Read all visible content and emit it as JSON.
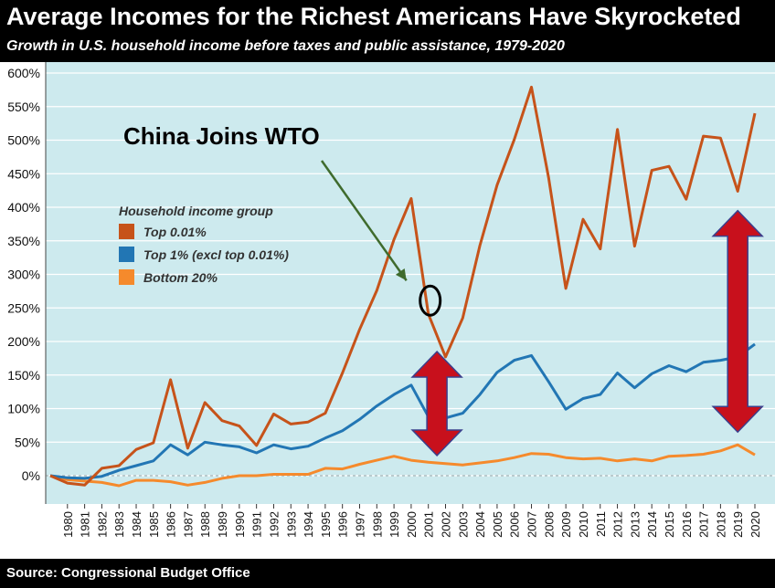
{
  "header": {
    "title": "Average Incomes for the Richest Americans Have Skyrocketed",
    "subtitle": "Growth in U.S. household income before taxes and public assistance, 1979-2020"
  },
  "footer": {
    "source": "Source: Congressional Budget Office"
  },
  "colors": {
    "background": "#cdeaee",
    "top001": "#c6531a",
    "top1": "#2276b4",
    "bottom20": "#f58a2c",
    "arrow_fill": "#c8101c",
    "arrow_stroke": "#3b3f8c",
    "annotation_arrow": "#3f6b2d",
    "grid": "#ffffff"
  },
  "chart_data": {
    "type": "line",
    "x": [
      1979,
      1980,
      1981,
      1982,
      1983,
      1984,
      1985,
      1986,
      1987,
      1988,
      1989,
      1990,
      1991,
      1992,
      1993,
      1994,
      1995,
      1996,
      1997,
      1998,
      1999,
      2000,
      2001,
      2002,
      2003,
      2004,
      2005,
      2006,
      2007,
      2008,
      2009,
      2010,
      2011,
      2012,
      2013,
      2014,
      2015,
      2016,
      2017,
      2018,
      2019,
      2020
    ],
    "x_tick_labels": [
      "1980",
      "1981",
      "1982",
      "1983",
      "1984",
      "1985",
      "1986",
      "1987",
      "1988",
      "1989",
      "1990",
      "1991",
      "1992",
      "1993",
      "1994",
      "1995",
      "1996",
      "1997",
      "1998",
      "1999",
      "2000",
      "2001",
      "2002",
      "2003",
      "2004",
      "2005",
      "2006",
      "2007",
      "2008",
      "2009",
      "2010",
      "2011",
      "2012",
      "2013",
      "2014",
      "2015",
      "2016",
      "2017",
      "2018",
      "2019",
      "2020"
    ],
    "ylim": [
      -50,
      600
    ],
    "y_ticks": [
      0,
      50,
      100,
      150,
      200,
      250,
      300,
      350,
      400,
      450,
      500,
      550,
      600
    ],
    "y_tick_labels": [
      "0%",
      "50%",
      "100%",
      "150%",
      "200%",
      "250%",
      "300%",
      "350%",
      "400%",
      "450%",
      "500%",
      "550%",
      "600%"
    ],
    "legend_title": "Household income group",
    "legend_placement": "upper-left",
    "grid": true,
    "series": [
      {
        "name": "Top 0.01%",
        "color": "#c6531a",
        "values": [
          0,
          -11,
          -14,
          11,
          15,
          39,
          49,
          143,
          41,
          109,
          82,
          74,
          45,
          92,
          77,
          80,
          93,
          153,
          218,
          276,
          352,
          413,
          241,
          177,
          235,
          343,
          433,
          501,
          579,
          444,
          279,
          382,
          338,
          516,
          342,
          455,
          461,
          412,
          506,
          503,
          424,
          540
        ]
      },
      {
        "name": "Top 1% (excl top 0.01%)",
        "color": "#2276b4",
        "values": [
          0,
          -3,
          -4,
          -1,
          8,
          15,
          22,
          46,
          31,
          50,
          46,
          43,
          34,
          46,
          40,
          44,
          56,
          67,
          84,
          104,
          121,
          135,
          88,
          86,
          93,
          121,
          154,
          172,
          179,
          140,
          99,
          115,
          121,
          153,
          131,
          152,
          164,
          155,
          169,
          172,
          177,
          196
        ]
      },
      {
        "name": "Bottom 20%",
        "color": "#f58a2c",
        "values": [
          0,
          -6,
          -8,
          -10,
          -15,
          -7,
          -7,
          -9,
          -14,
          -10,
          -4,
          0,
          0,
          2,
          2,
          2,
          11,
          10,
          17,
          23,
          29,
          23,
          20,
          18,
          16,
          19,
          22,
          27,
          33,
          32,
          27,
          25,
          26,
          22,
          25,
          22,
          29,
          30,
          32,
          37,
          46,
          31
        ]
      }
    ],
    "annotations": [
      {
        "text": "China Joins WTO",
        "target_x": 2001,
        "target_y": 250
      }
    ],
    "double_arrows": [
      {
        "x": 2001.5,
        "from": 30,
        "to": 185
      },
      {
        "x": 2019,
        "from": 65,
        "to": 395
      }
    ]
  }
}
